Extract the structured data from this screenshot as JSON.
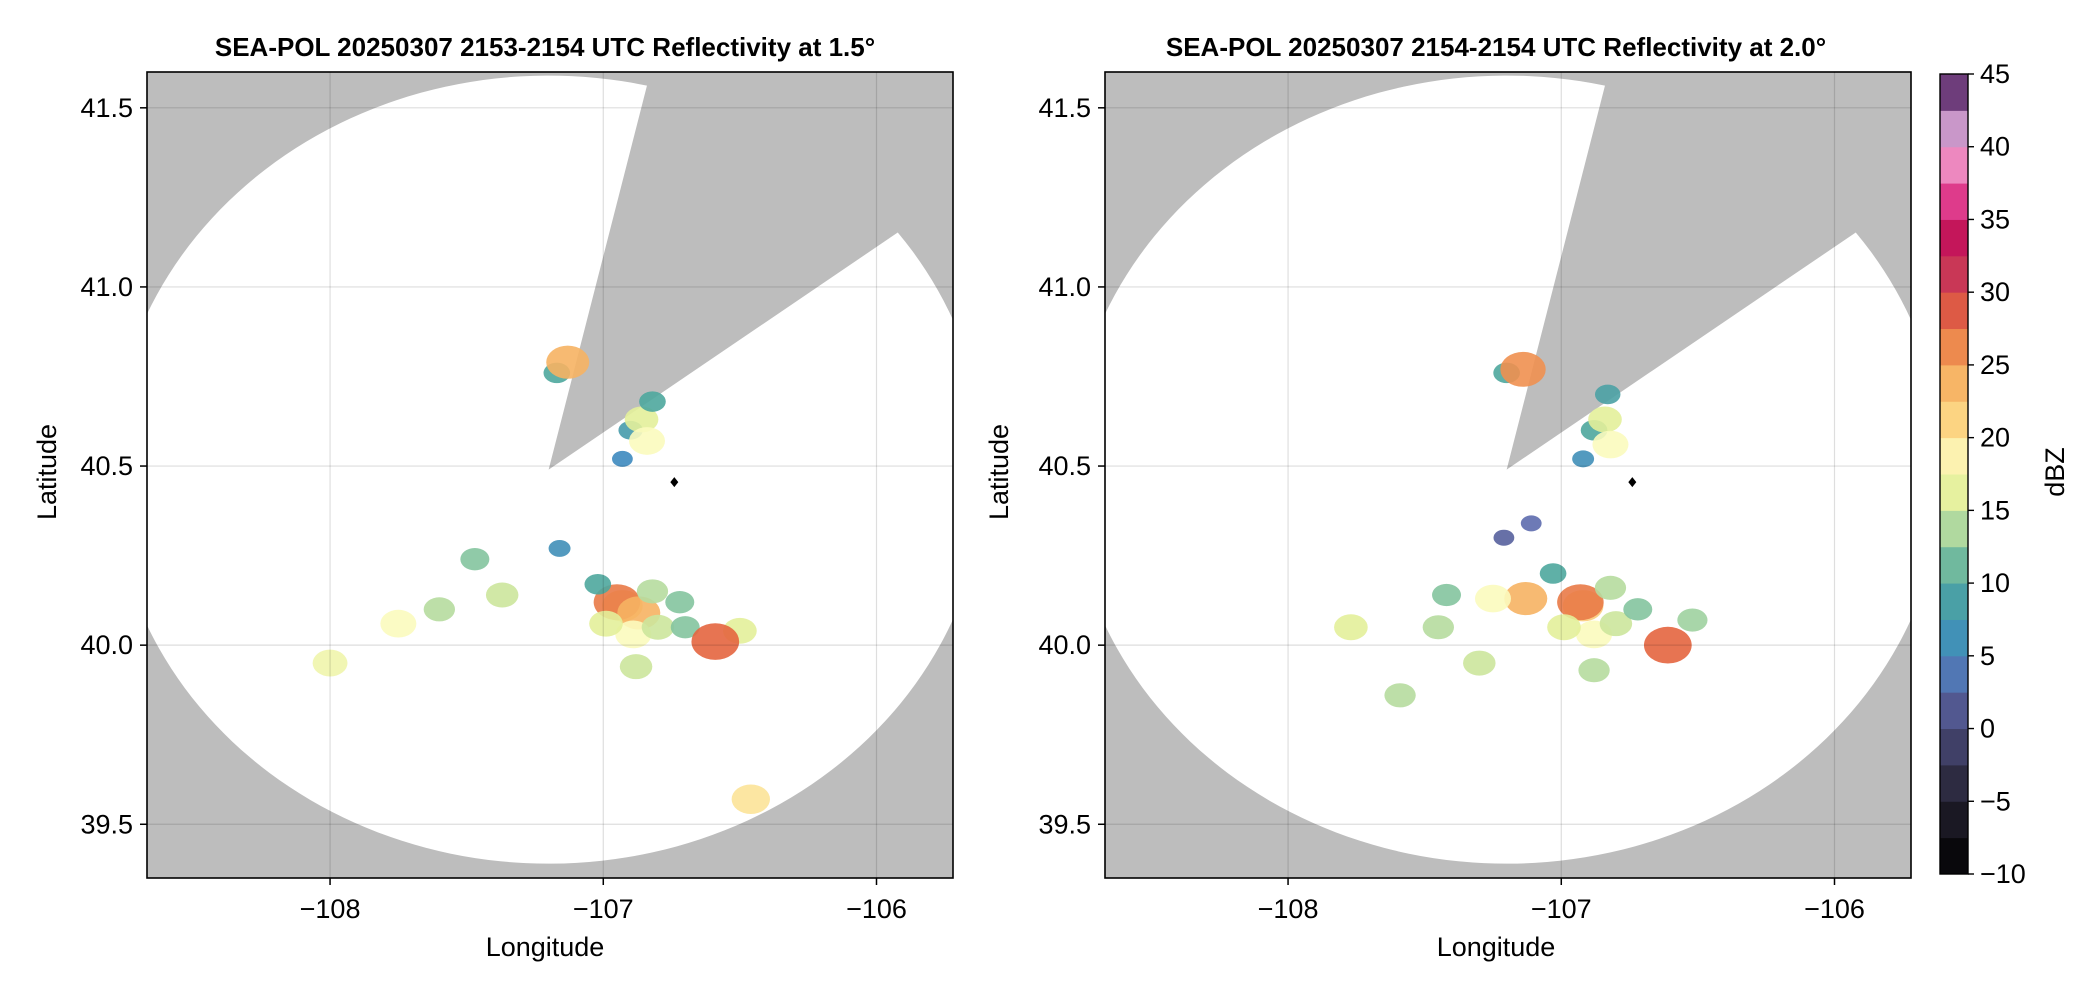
{
  "chart_data": [
    {
      "type": "heatmap",
      "title": "SEA-POL 20250307 2153-2154 UTC Reflectivity at 1.5°",
      "xlabel": "Longitude",
      "ylabel": "Latitude",
      "xlim": [
        -108.67,
        -105.72
      ],
      "ylim": [
        39.35,
        41.6
      ],
      "xticks": [
        -108,
        -107,
        -106
      ],
      "xtick_labels": [
        "−108",
        "−107",
        "−106"
      ],
      "yticks": [
        39.5,
        40.0,
        40.5,
        41.0,
        41.5
      ],
      "ytick_labels": [
        "39.5",
        "40.0",
        "40.5",
        "41.0",
        "41.5"
      ],
      "grid": true,
      "background_color": "#bdbdbd",
      "coverage": {
        "center": [
          -107.2,
          40.49
        ],
        "radius_lon": 1.6,
        "radius_lat": 1.1,
        "blocked_sector_deg": [
          13,
          53
        ]
      },
      "marker": {
        "lon": -106.74,
        "lat": 40.455,
        "color": "#000000"
      },
      "echoes": [
        {
          "lon": -106.93,
          "lat": 40.11,
          "dbz": 22
        },
        {
          "lon": -106.95,
          "lat": 40.12,
          "dbz": 27
        },
        {
          "lon": -106.87,
          "lat": 40.09,
          "dbz": 24
        },
        {
          "lon": -107.02,
          "lat": 40.17,
          "dbz": 10
        },
        {
          "lon": -106.82,
          "lat": 40.15,
          "dbz": 14
        },
        {
          "lon": -106.72,
          "lat": 40.12,
          "dbz": 12
        },
        {
          "lon": -106.89,
          "lat": 40.03,
          "dbz": 18
        },
        {
          "lon": -106.99,
          "lat": 40.06,
          "dbz": 16
        },
        {
          "lon": -106.8,
          "lat": 40.05,
          "dbz": 15
        },
        {
          "lon": -106.88,
          "lat": 39.94,
          "dbz": 15
        },
        {
          "lon": -106.7,
          "lat": 40.05,
          "dbz": 12
        },
        {
          "lon": -106.5,
          "lat": 40.04,
          "dbz": 16
        },
        {
          "lon": -106.59,
          "lat": 40.01,
          "dbz": 28
        },
        {
          "lon": -106.9,
          "lat": 40.6,
          "dbz": 8
        },
        {
          "lon": -106.86,
          "lat": 40.63,
          "dbz": 16
        },
        {
          "lon": -106.93,
          "lat": 40.52,
          "dbz": 5
        },
        {
          "lon": -106.84,
          "lat": 40.57,
          "dbz": 18
        },
        {
          "lon": -106.82,
          "lat": 40.68,
          "dbz": 10
        },
        {
          "lon": -107.17,
          "lat": 40.76,
          "dbz": 10
        },
        {
          "lon": -107.13,
          "lat": 40.79,
          "dbz": 24
        },
        {
          "lon": -107.75,
          "lat": 40.06,
          "dbz": 18
        },
        {
          "lon": -108.0,
          "lat": 39.95,
          "dbz": 17
        },
        {
          "lon": -107.47,
          "lat": 40.24,
          "dbz": 12
        },
        {
          "lon": -107.16,
          "lat": 40.27,
          "dbz": 6
        },
        {
          "lon": -107.6,
          "lat": 40.1,
          "dbz": 14
        },
        {
          "lon": -107.37,
          "lat": 40.14,
          "dbz": 15
        },
        {
          "lon": -106.46,
          "lat": 39.57,
          "dbz": 20
        }
      ]
    },
    {
      "type": "heatmap",
      "title": "SEA-POL 20250307 2154-2154 UTC Reflectivity at 2.0°",
      "xlabel": "Longitude",
      "ylabel": "Latitude",
      "xlim": [
        -108.67,
        -105.72
      ],
      "ylim": [
        39.35,
        41.6
      ],
      "xticks": [
        -108,
        -107,
        -106
      ],
      "xtick_labels": [
        "−108",
        "−107",
        "−106"
      ],
      "yticks": [
        39.5,
        40.0,
        40.5,
        41.0,
        41.5
      ],
      "ytick_labels": [
        "39.5",
        "40.0",
        "40.5",
        "41.0",
        "41.5"
      ],
      "grid": true,
      "background_color": "#bdbdbd",
      "coverage": {
        "center": [
          -107.2,
          40.49
        ],
        "radius_lon": 1.6,
        "radius_lat": 1.1,
        "blocked_sector_deg": [
          13,
          53
        ]
      },
      "marker": {
        "lon": -106.74,
        "lat": 40.455,
        "color": "#000000"
      },
      "echoes": [
        {
          "lon": -106.92,
          "lat": 40.11,
          "dbz": 22
        },
        {
          "lon": -106.93,
          "lat": 40.12,
          "dbz": 27
        },
        {
          "lon": -107.13,
          "lat": 40.13,
          "dbz": 24
        },
        {
          "lon": -107.03,
          "lat": 40.2,
          "dbz": 10
        },
        {
          "lon": -106.82,
          "lat": 40.16,
          "dbz": 14
        },
        {
          "lon": -106.88,
          "lat": 40.03,
          "dbz": 18
        },
        {
          "lon": -106.99,
          "lat": 40.05,
          "dbz": 16
        },
        {
          "lon": -106.8,
          "lat": 40.06,
          "dbz": 15
        },
        {
          "lon": -106.88,
          "lat": 39.93,
          "dbz": 14
        },
        {
          "lon": -106.72,
          "lat": 40.1,
          "dbz": 12
        },
        {
          "lon": -106.52,
          "lat": 40.07,
          "dbz": 13
        },
        {
          "lon": -106.61,
          "lat": 40.0,
          "dbz": 28
        },
        {
          "lon": -107.21,
          "lat": 40.3,
          "dbz": 2
        },
        {
          "lon": -107.11,
          "lat": 40.34,
          "dbz": 3
        },
        {
          "lon": -106.88,
          "lat": 40.6,
          "dbz": 10
        },
        {
          "lon": -106.84,
          "lat": 40.63,
          "dbz": 16
        },
        {
          "lon": -106.92,
          "lat": 40.52,
          "dbz": 6
        },
        {
          "lon": -106.82,
          "lat": 40.56,
          "dbz": 18
        },
        {
          "lon": -106.83,
          "lat": 40.7,
          "dbz": 9
        },
        {
          "lon": -107.2,
          "lat": 40.76,
          "dbz": 10
        },
        {
          "lon": -107.14,
          "lat": 40.77,
          "dbz": 26
        },
        {
          "lon": -107.77,
          "lat": 40.05,
          "dbz": 16
        },
        {
          "lon": -107.42,
          "lat": 40.14,
          "dbz": 12
        },
        {
          "lon": -107.45,
          "lat": 40.05,
          "dbz": 14
        },
        {
          "lon": -107.59,
          "lat": 39.86,
          "dbz": 14
        },
        {
          "lon": -107.3,
          "lat": 39.95,
          "dbz": 15
        },
        {
          "lon": -107.25,
          "lat": 40.13,
          "dbz": 18
        }
      ]
    }
  ],
  "colorbar": {
    "label": "dBZ",
    "min": -10,
    "max": 45,
    "ticks": [
      -10,
      -5,
      0,
      5,
      10,
      15,
      20,
      25,
      30,
      35,
      40,
      45
    ],
    "tick_labels": [
      "−10",
      "−5",
      "0",
      "5",
      "10",
      "15",
      "20",
      "25",
      "30",
      "35",
      "40",
      "45"
    ],
    "stops": [
      {
        "v": -10,
        "c": "#000000"
      },
      {
        "v": -5,
        "c": "#23202e"
      },
      {
        "v": 0,
        "c": "#4a4a7a"
      },
      {
        "v": 3,
        "c": "#5d6cae"
      },
      {
        "v": 5,
        "c": "#3d89bf"
      },
      {
        "v": 10,
        "c": "#4ea79d"
      },
      {
        "v": 13,
        "c": "#9fd2a0"
      },
      {
        "v": 16,
        "c": "#e3ef9a"
      },
      {
        "v": 18,
        "c": "#fbfbbe"
      },
      {
        "v": 21,
        "c": "#fdd785"
      },
      {
        "v": 25,
        "c": "#f4a558"
      },
      {
        "v": 28,
        "c": "#e4653f"
      },
      {
        "v": 31,
        "c": "#c93a56"
      },
      {
        "v": 34,
        "c": "#c3135a"
      },
      {
        "v": 37,
        "c": "#e7489b"
      },
      {
        "v": 40,
        "c": "#f2b6d9"
      },
      {
        "v": 42,
        "c": "#b084c0"
      },
      {
        "v": 45,
        "c": "#3f0a4a"
      }
    ]
  }
}
